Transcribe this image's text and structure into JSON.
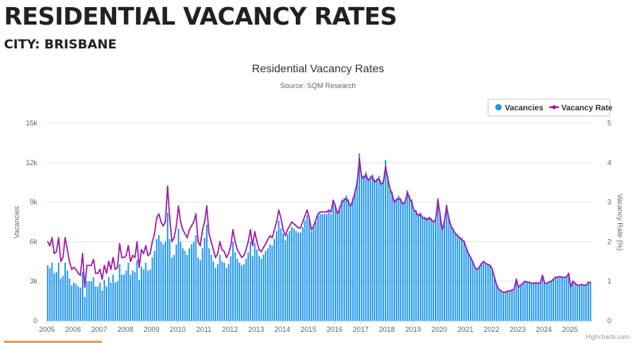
{
  "header": {
    "title": "RESIDENTIAL VACANCY RATES",
    "subtitle": "CITY: BRISBANE"
  },
  "chart_data": {
    "type": "bar+line",
    "title": "Residential Vacancy Rates",
    "subtitle": "Source: SQM Research",
    "credit": "Highcharts.com",
    "legend": {
      "placement": "top-right",
      "items": [
        "Vacancies",
        "Vacancy Rate"
      ]
    },
    "x_ticks": [
      "2005",
      "2006",
      "2007",
      "2008",
      "2009",
      "2010",
      "2011",
      "2012",
      "2013",
      "2014",
      "2015",
      "2016",
      "2017",
      "2018",
      "2019",
      "2020",
      "2021",
      "2022",
      "2023",
      "2024",
      "2025"
    ],
    "y_left": {
      "label": "Vacancies",
      "range": [
        0,
        15000
      ],
      "ticks": [
        "0",
        "3k",
        "6k",
        "9k",
        "12k",
        "15k"
      ]
    },
    "y_right": {
      "label": "Vacancy Rate (%)",
      "range": [
        0,
        5
      ],
      "ticks": [
        "0",
        "1",
        "2",
        "3",
        "4",
        "5"
      ]
    },
    "grid": true,
    "colors": {
      "vacancies": "#1e96f0",
      "rate": "#9b1aa6"
    },
    "series": [
      {
        "name": "Vacancies",
        "type": "bar",
        "axis": "left",
        "monthly_by_year": {
          "2005": [
            4200,
            4000,
            4400,
            3600,
            3700,
            4400,
            3200,
            3400,
            4400,
            3800,
            3200,
            2700
          ],
          "2006": [
            2900,
            2800,
            2600,
            2500,
            3700,
            1800,
            3000,
            3000,
            3000,
            3300,
            2600,
            2600
          ],
          "2007": [
            2900,
            2300,
            3100,
            2600,
            3300,
            2900,
            3500,
            2900,
            3000,
            4300,
            3500,
            3500
          ],
          "2008": [
            3800,
            4400,
            3500,
            3800,
            3700,
            4600,
            3100,
            4100,
            3900,
            4400,
            3800,
            3900
          ],
          "2009": [
            4800,
            5300,
            6200,
            6500,
            6000,
            5800,
            6000,
            8200,
            6200,
            4800,
            5000,
            5800
          ],
          "2010": [
            7000,
            6000,
            5500,
            5300,
            5000,
            5500,
            5800,
            6000,
            6500,
            4800,
            4600,
            5500
          ],
          "2011": [
            6300,
            7300,
            5500,
            5000,
            4500,
            4000,
            4300,
            5000,
            4500,
            4400,
            4000,
            4300
          ],
          "2012": [
            4900,
            6000,
            5200,
            4700,
            4400,
            4200,
            4300,
            4700,
            5200,
            6000,
            4900,
            5900
          ],
          "2013": [
            5400,
            4900,
            4700,
            5000,
            5300,
            5500,
            5800,
            5700,
            6200,
            6800,
            7600,
            7000
          ],
          "2014": [
            6600,
            6100,
            6600,
            6800,
            7100,
            7000,
            6800,
            6700,
            6700,
            7100,
            7600,
            8000
          ],
          "2015": [
            7700,
            6800,
            7100,
            7500,
            8000,
            8100,
            8100,
            8100,
            8100,
            8300,
            8100,
            9000
          ],
          "2016": [
            8800,
            8200,
            8700,
            9200,
            9300,
            9500,
            9200,
            8800,
            9300,
            9900,
            10700,
            12700
          ],
          "2017": [
            11100,
            11000,
            11300,
            10800,
            11000,
            11100,
            10700,
            10800,
            11000,
            10500,
            10700,
            12200
          ],
          "2018": [
            11000,
            10200,
            9800,
            9200,
            9300,
            9500,
            9300,
            9000,
            9200,
            9900,
            9500,
            9200
          ],
          "2019": [
            8500,
            8400,
            8100,
            8200,
            7900,
            7900,
            7800,
            7900,
            7800,
            7600,
            7800,
            9300
          ],
          "2020": [
            8200,
            7000,
            7600,
            8800,
            7900,
            7300,
            7000,
            6700,
            6600,
            6400,
            6300,
            6100
          ],
          "2021": [
            5600,
            5100,
            4800,
            4500,
            4100,
            3900,
            4100,
            4400,
            4500,
            4400,
            4300,
            4200
          ],
          "2022": [
            3900,
            3300,
            2700,
            2400,
            2300,
            2200,
            2200,
            2300,
            2300,
            2300,
            2400,
            3200
          ],
          "2023": [
            2600,
            2700,
            2900,
            3000,
            2900,
            2900,
            2900,
            2900,
            2900,
            2900,
            2900,
            3500
          ],
          "2024": [
            2900,
            2900,
            2900,
            3000,
            3200,
            3300,
            3300,
            3400,
            3300,
            3300,
            3300,
            3600
          ],
          "2025": [
            2600,
            3000,
            2900,
            2700,
            2700,
            2800,
            2700,
            2700,
            2900,
            2900
          ]
        }
      },
      {
        "name": "Vacancy Rate",
        "type": "line",
        "axis": "right",
        "monthly_by_year": {
          "2005": [
            2.0,
            1.9,
            2.1,
            1.7,
            1.75,
            2.1,
            1.5,
            1.6,
            2.1,
            1.8,
            1.5,
            1.3
          ],
          "2006": [
            1.35,
            1.3,
            1.2,
            1.15,
            1.7,
            0.85,
            1.4,
            1.4,
            1.4,
            1.55,
            1.2,
            1.2
          ],
          "2007": [
            1.3,
            1.05,
            1.4,
            1.2,
            1.5,
            1.3,
            1.6,
            1.3,
            1.35,
            1.95,
            1.6,
            1.6
          ],
          "2008": [
            1.65,
            1.9,
            1.5,
            1.65,
            1.6,
            2.0,
            1.35,
            1.8,
            1.7,
            1.9,
            1.65,
            1.7
          ],
          "2009": [
            2.0,
            2.2,
            2.6,
            2.7,
            2.5,
            2.4,
            2.5,
            3.4,
            2.6,
            2.0,
            2.1,
            2.4
          ],
          "2010": [
            2.9,
            2.5,
            2.3,
            2.2,
            2.1,
            2.3,
            2.4,
            2.5,
            2.7,
            2.0,
            1.9,
            2.3
          ],
          "2011": [
            2.5,
            2.9,
            2.2,
            2.0,
            1.8,
            1.6,
            1.7,
            2.0,
            1.8,
            1.75,
            1.6,
            1.7
          ],
          "2012": [
            1.9,
            2.3,
            2.0,
            1.8,
            1.7,
            1.6,
            1.65,
            1.8,
            2.0,
            2.3,
            1.9,
            2.25
          ],
          "2013": [
            2.0,
            1.8,
            1.75,
            1.85,
            1.95,
            2.05,
            2.15,
            2.1,
            2.3,
            2.5,
            2.8,
            2.6
          ],
          "2014": [
            2.3,
            2.15,
            2.3,
            2.4,
            2.5,
            2.45,
            2.4,
            2.35,
            2.35,
            2.5,
            2.65,
            2.8
          ],
          "2015": [
            2.6,
            2.3,
            2.4,
            2.55,
            2.7,
            2.75,
            2.75,
            2.75,
            2.75,
            2.8,
            2.75,
            3.05
          ],
          "2016": [
            2.9,
            2.7,
            2.85,
            3.0,
            3.05,
            3.1,
            3.0,
            2.9,
            3.05,
            3.25,
            3.5,
            4.1
          ],
          "2017": [
            3.65,
            3.6,
            3.7,
            3.55,
            3.6,
            3.65,
            3.5,
            3.55,
            3.6,
            3.45,
            3.5,
            3.9
          ],
          "2018": [
            3.6,
            3.35,
            3.2,
            3.0,
            3.05,
            3.1,
            3.05,
            2.95,
            3.0,
            3.25,
            3.1,
            3.0
          ],
          "2019": [
            2.8,
            2.75,
            2.65,
            2.7,
            2.6,
            2.6,
            2.55,
            2.6,
            2.55,
            2.5,
            2.55,
            3.05
          ],
          "2020": [
            2.7,
            2.3,
            2.5,
            2.9,
            2.6,
            2.4,
            2.3,
            2.2,
            2.15,
            2.1,
            2.05,
            2.0
          ],
          "2021": [
            1.85,
            1.7,
            1.6,
            1.5,
            1.35,
            1.3,
            1.35,
            1.45,
            1.5,
            1.45,
            1.42,
            1.4
          ],
          "2022": [
            1.3,
            1.1,
            0.9,
            0.8,
            0.75,
            0.72,
            0.72,
            0.75,
            0.75,
            0.78,
            0.8,
            1.05
          ],
          "2023": [
            0.85,
            0.9,
            0.95,
            1.0,
            0.98,
            0.97,
            0.95,
            0.95,
            0.96,
            0.95,
            0.95,
            1.15
          ],
          "2024": [
            0.95,
            0.95,
            0.98,
            1.0,
            1.05,
            1.1,
            1.1,
            1.12,
            1.1,
            1.1,
            1.1,
            1.2
          ],
          "2025": [
            0.85,
            1.0,
            0.95,
            0.9,
            0.9,
            0.92,
            0.9,
            0.9,
            0.97,
            0.97
          ]
        }
      }
    ]
  }
}
